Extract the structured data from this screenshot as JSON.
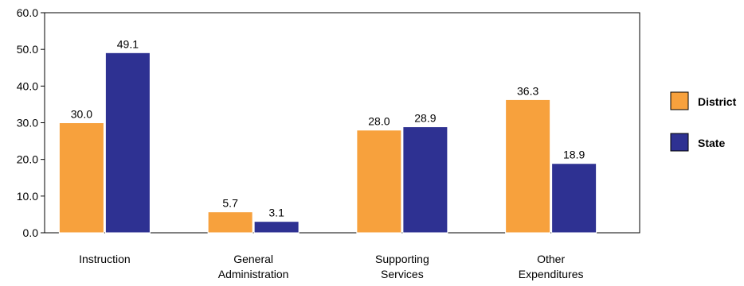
{
  "chart_data": {
    "type": "bar",
    "categories": [
      [
        "Instruction"
      ],
      [
        "General",
        "Administration"
      ],
      [
        "Supporting",
        "Services"
      ],
      [
        "Other",
        "Expenditures"
      ]
    ],
    "series": [
      {
        "name": "District",
        "color": "#f7a13d",
        "values": [
          30.0,
          5.7,
          28.0,
          36.3
        ]
      },
      {
        "name": "State",
        "color": "#2e3192",
        "values": [
          49.1,
          3.1,
          28.9,
          18.9
        ]
      }
    ],
    "ylim": [
      0,
      60
    ],
    "yticks": [
      "0.0",
      "10.0",
      "20.0",
      "30.0",
      "40.0",
      "50.0",
      "60.0"
    ],
    "legend_position": "right",
    "grid": false,
    "title": "",
    "xlabel": "",
    "ylabel": ""
  }
}
